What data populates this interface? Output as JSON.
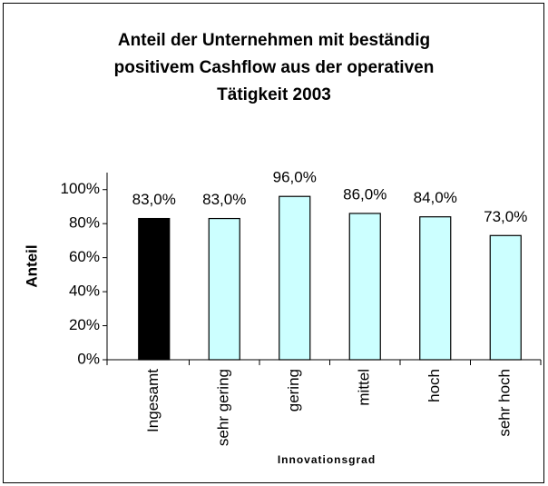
{
  "chart_data": {
    "type": "bar",
    "title": [
      "Anteil der Unternehmen mit beständig",
      "positivem Cashflow aus der operativen",
      "Tätigkeit 2003"
    ],
    "categories": [
      "Ingesamt",
      "sehr gering",
      "gering",
      "mittel",
      "hoch",
      "sehr hoch"
    ],
    "values": [
      83,
      83,
      96,
      86,
      84,
      73
    ],
    "value_labels": [
      "83,0%",
      "83,0%",
      "96,0%",
      "86,0%",
      "84,0%",
      "73,0%"
    ],
    "colors": [
      "#000000",
      "#ccffff",
      "#ccffff",
      "#ccffff",
      "#ccffff",
      "#ccffff"
    ],
    "ylabel": "Anteil",
    "xlabel": "Innovationsgrad",
    "ylim": [
      0,
      110
    ],
    "yticks": [
      {
        "value": 0,
        "label": "0%"
      },
      {
        "value": 20,
        "label": "20%"
      },
      {
        "value": 40,
        "label": "40%"
      },
      {
        "value": 60,
        "label": "60%"
      },
      {
        "value": 80,
        "label": "80%"
      },
      {
        "value": 100,
        "label": "100%"
      }
    ]
  }
}
